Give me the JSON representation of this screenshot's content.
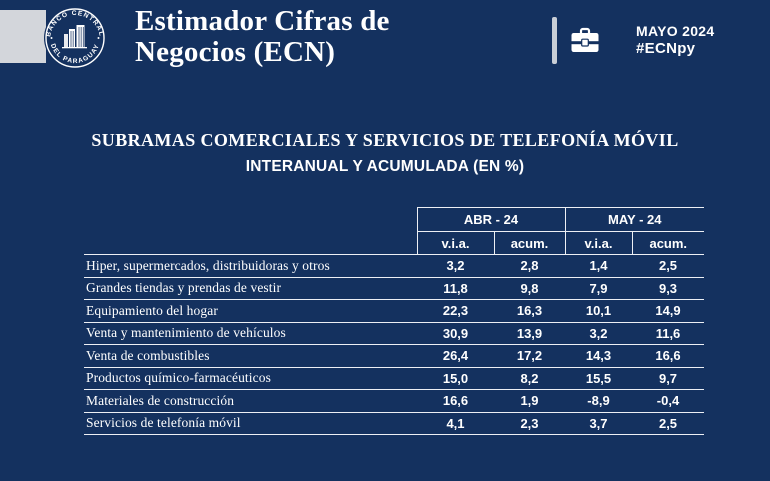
{
  "header": {
    "brand_line1": "Estimador Cifras de",
    "brand_line2": "Negocios (ECN)",
    "logo": {
      "top_text": "BANCO CENTRAL",
      "bottom_text": "DEL PARAGUAY"
    },
    "period": "MAYO 2024",
    "hashtag": "#ECNpy"
  },
  "main": {
    "title": "SUBRAMAS COMERCIALES Y SERVICIOS DE TELEFONÍA MÓVIL",
    "subtitle": "INTERANUAL Y ACUMULADA (EN %)"
  },
  "table": {
    "group_headers": [
      "ABR - 24",
      "MAY - 24"
    ],
    "sub_headers": [
      "v.i.a.",
      "acum.",
      "v.i.a.",
      "acum."
    ],
    "rows": [
      {
        "label": "Hiper, supermercados, distribuidoras y otros",
        "values": [
          "3,2",
          "2,8",
          "1,4",
          "2,5"
        ]
      },
      {
        "label": "Grandes tiendas y prendas de vestir",
        "values": [
          "11,8",
          "9,8",
          "7,9",
          "9,3"
        ]
      },
      {
        "label": "Equipamiento del hogar",
        "values": [
          "22,3",
          "16,3",
          "10,1",
          "14,9"
        ]
      },
      {
        "label": "Venta y mantenimiento de vehículos",
        "values": [
          "30,9",
          "13,9",
          "3,2",
          "11,6"
        ]
      },
      {
        "label": "Venta de combustibles",
        "values": [
          "26,4",
          "17,2",
          "14,3",
          "16,6"
        ]
      },
      {
        "label": "Productos químico-farmacéuticos",
        "values": [
          "15,0",
          "8,2",
          "15,5",
          "9,7"
        ]
      },
      {
        "label": "Materiales de construcción",
        "values": [
          "16,6",
          "1,9",
          "-8,9",
          "-0,4"
        ]
      },
      {
        "label": "Servicios de telefonía móvil",
        "values": [
          "4,1",
          "2,3",
          "3,7",
          "2,5"
        ]
      }
    ]
  },
  "chart_data": {
    "type": "table",
    "title": "SUBRAMAS COMERCIALES Y SERVICIOS DE TELEFONÍA MÓVIL — INTERANUAL Y ACUMULADA (EN %)",
    "period_label": "MAYO 2024",
    "column_groups": [
      "ABR - 24",
      "MAY - 24"
    ],
    "columns": [
      "ABR-24 v.i.a.",
      "ABR-24 acum.",
      "MAY-24 v.i.a.",
      "MAY-24 acum."
    ],
    "categories": [
      "Hiper, supermercados, distribuidoras y otros",
      "Grandes tiendas y prendas de vestir",
      "Equipamiento del hogar",
      "Venta y mantenimiento de vehículos",
      "Venta de combustibles",
      "Productos químico-farmacéuticos",
      "Materiales de construcción",
      "Servicios de telefonía móvil"
    ],
    "series": [
      {
        "name": "ABR-24 v.i.a.",
        "values": [
          3.2,
          11.8,
          22.3,
          30.9,
          26.4,
          15.0,
          16.6,
          4.1
        ]
      },
      {
        "name": "ABR-24 acum.",
        "values": [
          2.8,
          9.8,
          16.3,
          13.9,
          17.2,
          8.2,
          1.9,
          2.3
        ]
      },
      {
        "name": "MAY-24 v.i.a.",
        "values": [
          1.4,
          7.9,
          10.1,
          3.2,
          14.3,
          15.5,
          -8.9,
          3.7
        ]
      },
      {
        "name": "MAY-24 acum.",
        "values": [
          2.5,
          9.3,
          14.9,
          11.6,
          16.6,
          9.7,
          -0.4,
          2.5
        ]
      }
    ],
    "unit": "%"
  },
  "colors": {
    "background": "#14315F",
    "text": "#FFFFFF",
    "table_line": "#EDF0F5",
    "gray_accent": "#D3D6DB"
  }
}
